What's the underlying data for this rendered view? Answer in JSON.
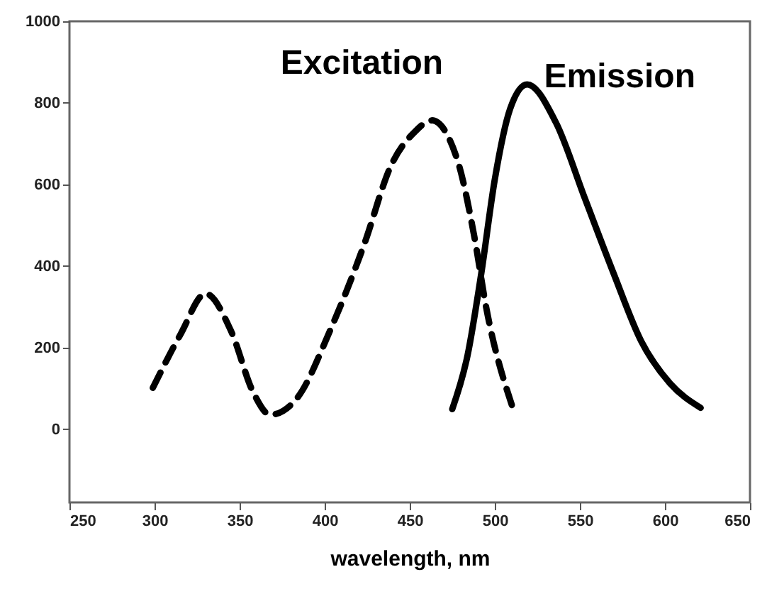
{
  "chart_data": {
    "type": "line",
    "xlabel": "wavelength, nm",
    "xlim": [
      250,
      650
    ],
    "xticks": [
      250,
      300,
      350,
      400,
      450,
      500,
      550,
      600,
      650
    ],
    "ylim": [
      -180,
      1000
    ],
    "yticks": [
      0,
      200,
      400,
      600,
      800,
      1000
    ],
    "grid": false,
    "marker": "none",
    "series": [
      {
        "name": "Excitation",
        "color": "#000000",
        "line_style": "dashed",
        "x": [
          299,
          315,
          330,
          345,
          358,
          368,
          384,
          403,
          423,
          439,
          453,
          463,
          478,
          488,
          495,
          510
        ],
        "values": [
          101,
          230,
          332,
          240,
          90,
          35,
          77,
          240,
          450,
          646,
          729,
          757,
          660,
          471,
          297,
          59
        ]
      },
      {
        "name": "Emission",
        "color": "#000000",
        "line_style": "solid",
        "x": [
          475,
          484,
          492,
          500,
          509,
          519,
          536,
          553,
          570,
          586,
          603,
          621
        ],
        "values": [
          49,
          181,
          380,
          612,
          785,
          845,
          751,
          565,
          380,
          216,
          112,
          52
        ]
      }
    ]
  }
}
